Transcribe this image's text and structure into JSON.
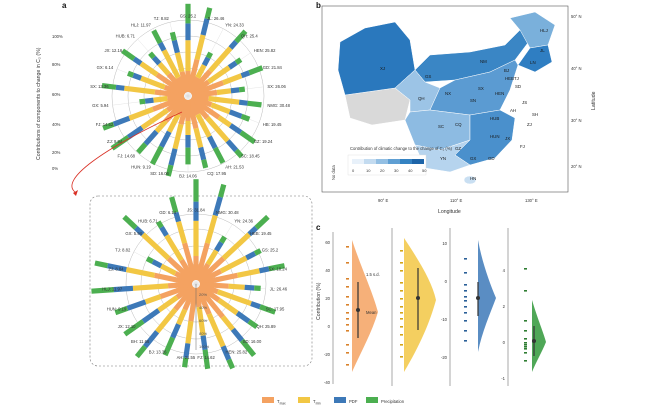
{
  "panel_letters": [
    "a",
    "b",
    "c"
  ],
  "panel_a": {
    "y_axis_label": "Contributions of components to change in C₂ (%)",
    "radial_ticks": [
      "100%",
      "80%",
      "60%",
      "40%",
      "20%",
      "0%"
    ],
    "top_labels": [
      {
        "text": "GS: 25.2"
      },
      {
        "text": "JL: 26.46"
      },
      {
        "text": "YN: 24.33"
      },
      {
        "text": "QH: 25.4"
      },
      {
        "text": "HEN: 25.82"
      },
      {
        "text": "GD: 21.84"
      },
      {
        "text": "SX: 26.06"
      },
      {
        "text": "NMG: 30.48"
      },
      {
        "text": "HB: 19.45"
      },
      {
        "text": "GZ: 19.24"
      },
      {
        "text": "SC: 18.45"
      },
      {
        "text": "AH: 21.53"
      },
      {
        "text": "CQ: 17.95"
      },
      {
        "text": "BJ: 14.06"
      },
      {
        "text": "SD: 16.06"
      },
      {
        "text": "HUN: 9.19"
      },
      {
        "text": "FJ: 14.68"
      },
      {
        "text": "ZJ: 9.94"
      },
      {
        "text": "FJ: 14.62"
      },
      {
        "text": "GX: 5.94"
      },
      {
        "text": "SX: 13.36"
      },
      {
        "text": "GX: 6.14"
      },
      {
        "text": "JX: 12.16"
      },
      {
        "text": "HUB: 6.71"
      },
      {
        "text": "HLJ: 11.97"
      },
      {
        "text": "TJ: 8.82"
      }
    ],
    "bottom_labels": [
      {
        "text": "JS: 31.84"
      },
      {
        "text": "NMG: 30.48"
      },
      {
        "text": "YN: 24.36"
      },
      {
        "text": "HEB: 19.45"
      },
      {
        "text": "GS: 25.2"
      },
      {
        "text": "SX: 18.24"
      },
      {
        "text": "JL: 26.46"
      },
      {
        "text": "SC: 17.95"
      },
      {
        "text": "QH: 25.89"
      },
      {
        "text": "SD: 16.00"
      },
      {
        "text": "HEN: 25.82"
      },
      {
        "text": "FJ: 14.62"
      },
      {
        "text": "AH: 21.55"
      },
      {
        "text": "BJ: 13.36"
      },
      {
        "text": "BH: 11.66"
      },
      {
        "text": "JX: 12.10"
      },
      {
        "text": "HUN: 9.19"
      },
      {
        "text": "HLJ: 11.97"
      },
      {
        "text": "ZJ: 8.84"
      },
      {
        "text": "TJ: 8.82"
      },
      {
        "text": "GX: 5.94"
      },
      {
        "text": "HUB: 6.71"
      },
      {
        "text": "GD: 6.14"
      }
    ],
    "bottom_axis_ticks": [
      "20%",
      "40%",
      "60%",
      "80%",
      "100%"
    ]
  },
  "panel_b": {
    "lat_ticks": [
      "50° N",
      "40° N",
      "30° N",
      "20° N"
    ],
    "lon_ticks": [
      "90° E",
      "110° E",
      "130° E"
    ],
    "lat_label": "Latitude",
    "lon_label": "Longitude",
    "legend_title": "Contribution of climatic change to the change of C₂ (%)",
    "legend_ticks": [
      "0",
      "10",
      "20",
      "30",
      "40",
      "50"
    ],
    "legend_side_label": "No data",
    "province_labels": [
      "XJ",
      "GS",
      "NM",
      "HLJ",
      "JL",
      "LN",
      "HEB",
      "QH",
      "SX",
      "SN",
      "HEN",
      "SD",
      "JS",
      "AH",
      "HUB",
      "SC",
      "CQ",
      "ZJ",
      "HUN",
      "JX",
      "FJ",
      "GZ",
      "YN",
      "GX",
      "GD",
      "HN",
      "SH",
      "BJ",
      "TJ",
      "NX"
    ],
    "colors": {
      "no_data": "#d9d9d9",
      "low": "#d6e6f4",
      "high": "#1f6fb5"
    }
  },
  "panel_c": {
    "y_label": "Contribution (%)",
    "left_ticks": [
      "60",
      "40",
      "20",
      "0",
      "-20",
      "-40"
    ],
    "right_ticks_a": [
      "10",
      "0",
      "-10",
      "-20"
    ],
    "right_ticks_b": [
      "4",
      "2",
      "0",
      "-1"
    ],
    "annotations": {
      "sd": "1.5 s.d.",
      "mean": "Mean"
    }
  },
  "legend": {
    "items": [
      {
        "label": "T",
        "sub": "max",
        "color": "#f4a261"
      },
      {
        "label": "T",
        "sub": "min",
        "color": "#f2c744"
      },
      {
        "label": "PDF",
        "sub": "",
        "color": "#3d79b8"
      },
      {
        "label": "Precipitation",
        "sub": "",
        "color": "#4caf50"
      }
    ]
  }
}
